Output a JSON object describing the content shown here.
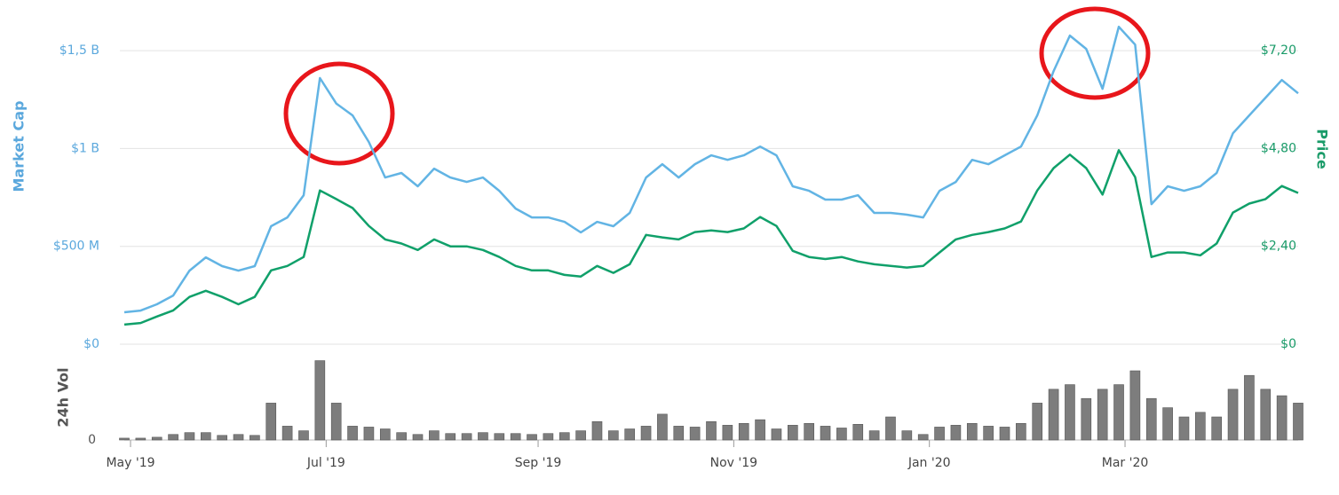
{
  "chart_data": [
    {
      "type": "line",
      "ylabel": "Market Cap",
      "y2label": "Price",
      "ylim": [
        0,
        1700
      ],
      "yticks": [
        {
          "value": 0,
          "label": "$0"
        },
        {
          "value": 500,
          "label": "$500 M"
        },
        {
          "value": 1000,
          "label": "$1 B"
        },
        {
          "value": 1500,
          "label": "$1,5 B"
        }
      ],
      "y2lim": [
        0,
        8.16
      ],
      "y2ticks": [
        {
          "value": 0,
          "label": "$0"
        },
        {
          "value": 2.4,
          "label": "$2,40"
        },
        {
          "value": 4.8,
          "label": "$4,80"
        },
        {
          "value": 7.2,
          "label": "$7,20"
        }
      ],
      "grid": true,
      "series": [
        {
          "color": "#62b4e4",
          "axis": "y",
          "values": [
            163,
            172,
            204,
            249,
            376,
            444,
            399,
            376,
            399,
            603,
            648,
            761,
            1360,
            1230,
            1169,
            1033,
            852,
            875,
            807,
            897,
            852,
            829,
            852,
            784,
            693,
            648,
            648,
            625,
            571,
            625,
            603,
            671,
            852,
            920,
            852,
            920,
            965,
            942,
            965,
            1010,
            965,
            807,
            784,
            739,
            739,
            761,
            671,
            671,
            662,
            648,
            784,
            829,
            942,
            920,
            965,
            1010,
            1169,
            1396,
            1577,
            1509,
            1305,
            1622,
            1531,
            716,
            807,
            784,
            807,
            875,
            1078,
            1169,
            1260,
            1350,
            1282
          ]
        },
        {
          "color": "#10a06a",
          "axis": "y2",
          "values": [
            0.48,
            0.52,
            0.68,
            0.83,
            1.16,
            1.31,
            1.16,
            0.98,
            1.16,
            1.81,
            1.92,
            2.14,
            3.77,
            3.56,
            3.34,
            2.9,
            2.57,
            2.47,
            2.31,
            2.57,
            2.4,
            2.4,
            2.31,
            2.14,
            1.92,
            1.81,
            1.81,
            1.7,
            1.66,
            1.92,
            1.75,
            1.96,
            2.68,
            2.62,
            2.57,
            2.75,
            2.79,
            2.75,
            2.84,
            3.12,
            2.9,
            2.29,
            2.14,
            2.09,
            2.14,
            2.03,
            1.96,
            1.92,
            1.88,
            1.92,
            2.25,
            2.57,
            2.68,
            2.75,
            2.84,
            3.01,
            3.77,
            4.32,
            4.65,
            4.32,
            3.67,
            4.76,
            4.1,
            2.14,
            2.25,
            2.25,
            2.18,
            2.47,
            3.23,
            3.45,
            3.56,
            3.88,
            3.71
          ]
        }
      ]
    },
    {
      "type": "bar",
      "ylabel": "24h Vol",
      "ylim": [
        0,
        100
      ],
      "yticks": [
        0
      ],
      "color": "#7d7d7d",
      "categories": [
        "May '19",
        null,
        null,
        null,
        null,
        null,
        null,
        null,
        null,
        null,
        null,
        null,
        "Jul '19",
        null,
        null,
        null,
        null,
        null,
        null,
        null,
        null,
        null,
        null,
        null,
        null,
        "Sep '19",
        null,
        null,
        null,
        null,
        null,
        null,
        null,
        null,
        null,
        null,
        null,
        "Nov '19",
        null,
        null,
        null,
        null,
        null,
        null,
        null,
        null,
        null,
        null,
        null,
        "Jan '20",
        null,
        null,
        null,
        null,
        null,
        null,
        null,
        null,
        null,
        null,
        null,
        "Mar '20",
        null,
        null,
        null,
        null,
        null,
        null,
        null,
        null,
        null,
        null,
        null
      ],
      "values": [
        2,
        2,
        3,
        6,
        8,
        8,
        5,
        6,
        5,
        40,
        15,
        10,
        86,
        40,
        15,
        14,
        12,
        8,
        6,
        10,
        7,
        7,
        8,
        7,
        7,
        6,
        7,
        8,
        10,
        20,
        10,
        12,
        15,
        28,
        15,
        14,
        20,
        16,
        18,
        22,
        12,
        16,
        18,
        15,
        13,
        17,
        10,
        25,
        10,
        6,
        14,
        16,
        18,
        15,
        14,
        18,
        40,
        55,
        60,
        45,
        55,
        60,
        75,
        45,
        35,
        25,
        30,
        25,
        55,
        70,
        55,
        48,
        40
      ]
    }
  ]
}
